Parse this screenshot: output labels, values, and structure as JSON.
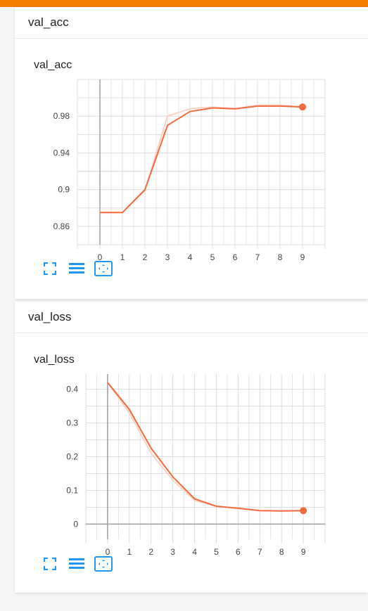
{
  "colors": {
    "accent": "#f57c00",
    "line": "#f26b3f",
    "smooth": "#fbd3c4",
    "grid": "#dddddd",
    "axis": "#9e9e9e",
    "icon": "#2196f3"
  },
  "cards": [
    {
      "header": "val_acc"
    },
    {
      "header": "val_loss"
    }
  ],
  "toolbar_icons": [
    "expand-icon",
    "list-icon",
    "fit-domain-icon"
  ],
  "chart_data": [
    {
      "type": "line",
      "title": "val_acc",
      "x": [
        0,
        1,
        2,
        3,
        4,
        5,
        6,
        7,
        8,
        9
      ],
      "series": [
        {
          "values": [
            0.875,
            0.875,
            0.9,
            0.97,
            0.985,
            0.989,
            0.988,
            0.991,
            0.991,
            0.99
          ]
        }
      ],
      "raw_values": [
        0.875,
        0.875,
        0.899,
        0.98,
        0.988,
        0.99,
        0.988,
        0.992,
        0.992,
        0.99
      ],
      "xticks": [
        "0",
        "1",
        "2",
        "3",
        "4",
        "5",
        "6",
        "7",
        "8",
        "9"
      ],
      "yticks": [
        "0.86",
        "0.9",
        "0.94",
        "0.98"
      ],
      "ytick_values": [
        0.86,
        0.9,
        0.94,
        0.98
      ],
      "xlim": [
        -1,
        10
      ],
      "ylim": [
        0.84,
        1.02
      ],
      "grid": true
    },
    {
      "type": "line",
      "title": "val_loss",
      "x": [
        0,
        1,
        2,
        3,
        4,
        5,
        6,
        7,
        8,
        9
      ],
      "series": [
        {
          "values": [
            0.42,
            0.34,
            0.225,
            0.14,
            0.075,
            0.053,
            0.047,
            0.04,
            0.039,
            0.04
          ]
        }
      ],
      "raw_values": [
        0.42,
        0.33,
        0.21,
        0.13,
        0.07,
        0.053,
        0.047,
        0.04,
        0.039,
        0.04
      ],
      "xticks": [
        "0",
        "1",
        "2",
        "3",
        "4",
        "5",
        "6",
        "7",
        "8",
        "9"
      ],
      "yticks": [
        "0",
        "0.1",
        "0.2",
        "0.3",
        "0.4"
      ],
      "ytick_values": [
        0,
        0.1,
        0.2,
        0.3,
        0.4
      ],
      "xlim": [
        -1,
        10
      ],
      "ylim": [
        -0.045,
        0.445
      ],
      "grid": true
    }
  ]
}
